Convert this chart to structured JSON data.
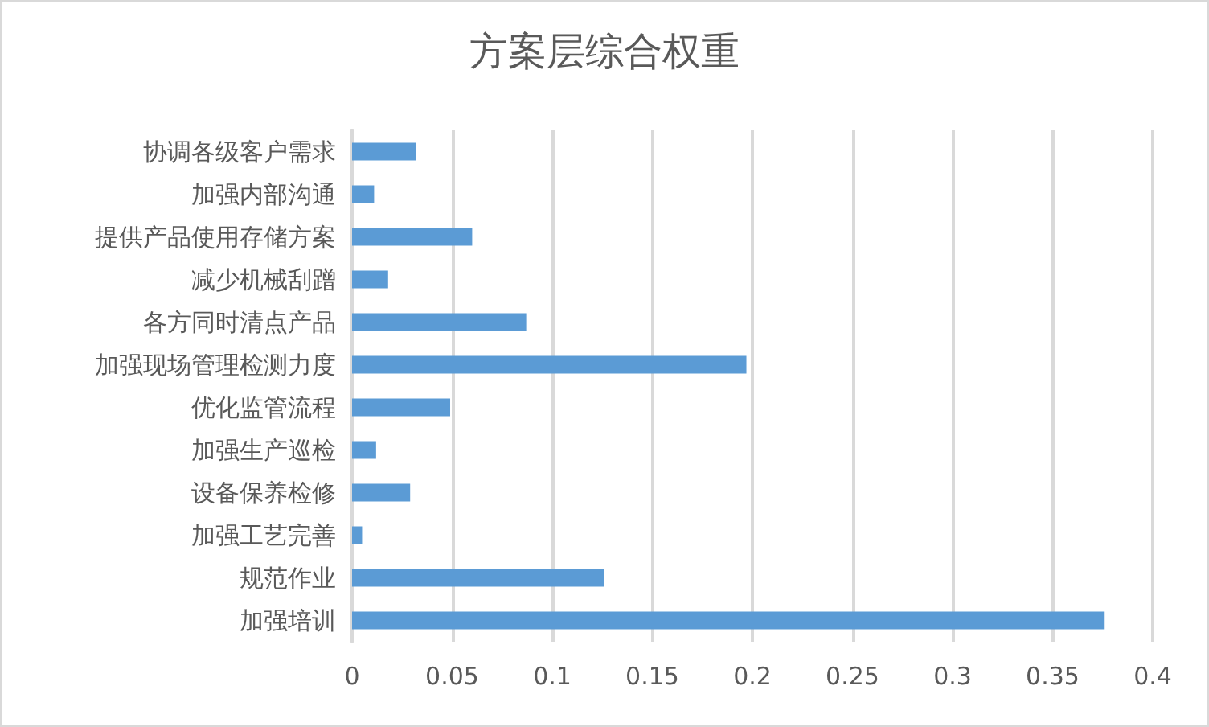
{
  "chart_data": {
    "type": "bar",
    "orientation": "horizontal",
    "title": "方案层综合权重",
    "categories": [
      "协调各级客户需求",
      "加强内部沟通",
      "提供产品使用存储方案",
      "减少机械刮蹭",
      "各方同时清点产品",
      "加强现场管理检测力度",
      "优化监管流程",
      "加强生产巡检",
      "设备保养检修",
      "加强工艺完善",
      "规范作业",
      "加强培训"
    ],
    "values": [
      0.032,
      0.011,
      0.06,
      0.018,
      0.087,
      0.197,
      0.049,
      0.012,
      0.029,
      0.005,
      0.126,
      0.376
    ],
    "color": "#5b9bd5",
    "xlim": [
      0,
      0.4
    ],
    "xticks": [
      0,
      0.05,
      0.1,
      0.15,
      0.2,
      0.25,
      0.3,
      0.35,
      0.4
    ],
    "grid": "x"
  }
}
